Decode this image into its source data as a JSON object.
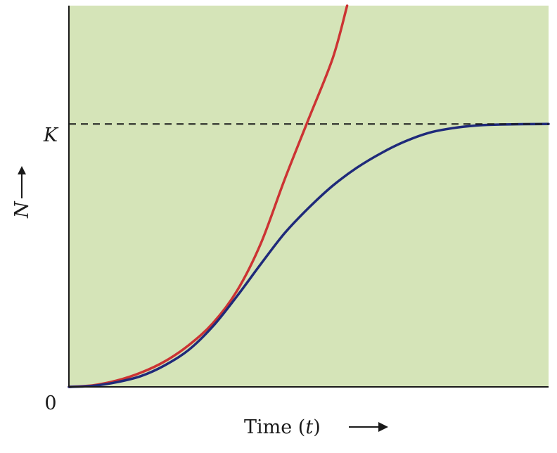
{
  "chart_data": {
    "type": "line",
    "xlabel": "Time (t)",
    "xlabel_prefix": "Time (",
    "xlabel_var": "t",
    "xlabel_suffix": ")",
    "ylabel": "N",
    "y_ticks": [
      {
        "label": "0",
        "value": 0
      },
      {
        "label": "K",
        "value": 1
      }
    ],
    "xlim": [
      0,
      1
    ],
    "ylim": [
      0,
      1.45
    ],
    "grid": false,
    "carrying_capacity_line": {
      "value": 1,
      "style": "dashed",
      "color": "#1a1a1a"
    },
    "series": [
      {
        "color": "#cc3333",
        "points": [
          [
            0,
            0
          ],
          [
            0.05,
            0.006
          ],
          [
            0.1,
            0.024
          ],
          [
            0.15,
            0.054
          ],
          [
            0.2,
            0.097
          ],
          [
            0.25,
            0.159
          ],
          [
            0.3,
            0.242
          ],
          [
            0.35,
            0.364
          ],
          [
            0.4,
            0.545
          ],
          [
            0.45,
            0.79
          ],
          [
            0.5,
            1.02
          ],
          [
            0.55,
            1.25
          ],
          [
            0.58,
            1.45
          ]
        ]
      },
      {
        "color": "#1f2a7a",
        "points": [
          [
            0,
            0
          ],
          [
            0.05,
            0.004
          ],
          [
            0.1,
            0.018
          ],
          [
            0.15,
            0.041
          ],
          [
            0.2,
            0.082
          ],
          [
            0.25,
            0.141
          ],
          [
            0.3,
            0.23
          ],
          [
            0.35,
            0.344
          ],
          [
            0.4,
            0.467
          ],
          [
            0.45,
            0.585
          ],
          [
            0.5,
            0.681
          ],
          [
            0.55,
            0.765
          ],
          [
            0.6,
            0.833
          ],
          [
            0.65,
            0.888
          ],
          [
            0.7,
            0.933
          ],
          [
            0.75,
            0.966
          ],
          [
            0.8,
            0.984
          ],
          [
            0.85,
            0.994
          ],
          [
            0.9,
            0.998
          ],
          [
            1.0,
            1.0
          ]
        ]
      }
    ]
  },
  "colors": {
    "plot_background": "#d5e4b8",
    "axis": "#1a1a1a"
  }
}
